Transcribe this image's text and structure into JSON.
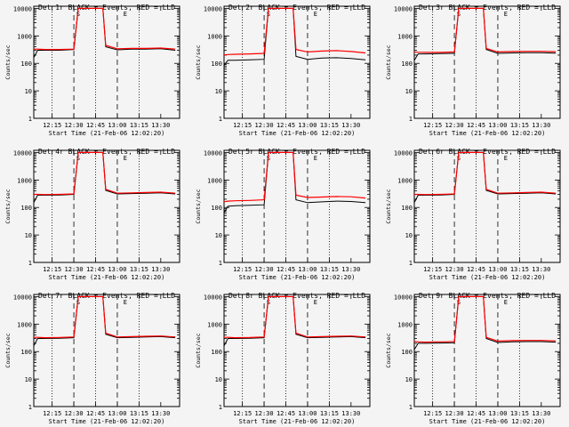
{
  "chart_data": [
    {
      "type": "line",
      "title": "Det 1r BLACK = Events, RED = LLD",
      "xlabel": "Start Time (21-Feb-06 12:02:20)",
      "ylabel": "Counts/sec",
      "xlim": [
        "12:02:20",
        "13:43"
      ],
      "ylim": [
        1,
        12000
      ],
      "yscale": "log",
      "x_ticks": [
        "12:15",
        "12:30",
        "12:45",
        "13:00",
        "13:15",
        "13:30"
      ],
      "y_ticks": [
        "1",
        "10",
        "100",
        "1000",
        "10000"
      ],
      "annotations": [
        "S",
        "E"
      ],
      "grid": false,
      "series": [
        {
          "name": "BLACK",
          "x": [
            "12:02",
            "12:05",
            "12:10",
            "12:20",
            "12:30",
            "12:33",
            "12:35",
            "12:50",
            "12:52",
            "13:00",
            "13:10",
            "13:20",
            "13:30",
            "13:40"
          ],
          "y": [
            150,
            300,
            300,
            300,
            320,
            10000,
            10000,
            10000,
            400,
            310,
            330,
            330,
            340,
            300
          ],
          "color": "#000000"
        },
        {
          "name": "RED",
          "x": [
            "12:02",
            "12:05",
            "12:10",
            "12:20",
            "12:30",
            "12:33",
            "12:35",
            "12:50",
            "12:52",
            "13:00",
            "13:10",
            "13:20",
            "13:30",
            "13:40"
          ],
          "y": [
            330,
            330,
            320,
            320,
            330,
            10000,
            10000,
            10000,
            450,
            340,
            350,
            350,
            360,
            330
          ],
          "color": "#ff0000"
        }
      ]
    },
    {
      "type": "line",
      "title": "Det 2r BLACK = Events, RED = LLD",
      "xlabel": "Start Time (21-Feb-06 12:02:20)",
      "ylabel": "Counts/sec",
      "xlim": [
        "12:02:20",
        "13:43"
      ],
      "ylim": [
        1,
        12000
      ],
      "yscale": "log",
      "x_ticks": [
        "12:15",
        "12:30",
        "12:45",
        "13:00",
        "13:15",
        "13:30"
      ],
      "y_ticks": [
        "1",
        "10",
        "100",
        "1000",
        "10000"
      ],
      "annotations": [
        "S",
        "E"
      ],
      "grid": false,
      "series": [
        {
          "name": "BLACK",
          "x": [
            "12:02",
            "12:05",
            "12:10",
            "12:20",
            "12:30",
            "12:33",
            "12:35",
            "12:50",
            "12:52",
            "13:00",
            "13:10",
            "13:20",
            "13:30",
            "13:40"
          ],
          "y": [
            80,
            130,
            130,
            135,
            140,
            10000,
            10000,
            10000,
            180,
            140,
            155,
            160,
            150,
            135
          ],
          "color": "#000000"
        },
        {
          "name": "RED",
          "x": [
            "12:02",
            "12:05",
            "12:10",
            "12:20",
            "12:30",
            "12:33",
            "12:35",
            "12:50",
            "12:52",
            "13:00",
            "13:10",
            "13:20",
            "13:30",
            "13:40"
          ],
          "y": [
            200,
            210,
            215,
            220,
            230,
            10000,
            10000,
            10000,
            320,
            260,
            280,
            290,
            270,
            240
          ],
          "color": "#ff0000"
        }
      ]
    },
    {
      "type": "line",
      "title": "Det 3r BLACK = Events, RED = LLD",
      "xlabel": "Start Time (21-Feb-06 12:02:20)",
      "ylabel": "Counts/sec",
      "xlim": [
        "12:02:20",
        "13:43"
      ],
      "ylim": [
        1,
        12000
      ],
      "yscale": "log",
      "x_ticks": [
        "12:15",
        "12:30",
        "12:45",
        "13:00",
        "13:15",
        "13:30"
      ],
      "y_ticks": [
        "1",
        "10",
        "100",
        "1000",
        "10000"
      ],
      "annotations": [
        "S",
        "E"
      ],
      "grid": false,
      "series": [
        {
          "name": "BLACK",
          "x": [
            "12:02",
            "12:05",
            "12:10",
            "12:20",
            "12:30",
            "12:33",
            "12:35",
            "12:50",
            "12:52",
            "13:00",
            "13:10",
            "13:20",
            "13:30",
            "13:40"
          ],
          "y": [
            120,
            220,
            220,
            225,
            230,
            10000,
            10000,
            10000,
            320,
            230,
            240,
            245,
            245,
            235
          ],
          "color": "#000000"
        },
        {
          "name": "RED",
          "x": [
            "12:02",
            "12:05",
            "12:10",
            "12:20",
            "12:30",
            "12:33",
            "12:35",
            "12:50",
            "12:52",
            "13:00",
            "13:10",
            "13:20",
            "13:30",
            "13:40"
          ],
          "y": [
            260,
            255,
            250,
            250,
            260,
            10000,
            10000,
            10000,
            350,
            260,
            270,
            275,
            275,
            265
          ],
          "color": "#ff0000"
        }
      ]
    },
    {
      "type": "line",
      "title": "Det 4r BLACK = Events, RED = LLD",
      "xlabel": "Start Time (21-Feb-06 12:02:20)",
      "ylabel": "Counts/sec",
      "xlim": [
        "12:02:20",
        "13:43"
      ],
      "ylim": [
        1,
        12000
      ],
      "yscale": "log",
      "x_ticks": [
        "12:15",
        "12:30",
        "12:45",
        "13:00",
        "13:15",
        "13:30"
      ],
      "y_ticks": [
        "1",
        "10",
        "100",
        "1000",
        "10000"
      ],
      "annotations": [
        "S",
        "E"
      ],
      "grid": false,
      "series": [
        {
          "name": "BLACK",
          "x": [
            "12:02",
            "12:05",
            "12:10",
            "12:20",
            "12:30",
            "12:33",
            "12:35",
            "12:50",
            "12:52",
            "13:00",
            "13:10",
            "13:20",
            "13:30",
            "13:40"
          ],
          "y": [
            140,
            280,
            280,
            285,
            300,
            10000,
            10000,
            10000,
            420,
            310,
            320,
            330,
            340,
            310
          ],
          "color": "#000000"
        },
        {
          "name": "RED",
          "x": [
            "12:02",
            "12:05",
            "12:10",
            "12:20",
            "12:30",
            "12:33",
            "12:35",
            "12:50",
            "12:52",
            "13:00",
            "13:10",
            "13:20",
            "13:30",
            "13:40"
          ],
          "y": [
            300,
            300,
            295,
            300,
            310,
            10000,
            10000,
            10000,
            460,
            330,
            340,
            350,
            360,
            330
          ],
          "color": "#ff0000"
        }
      ]
    },
    {
      "type": "line",
      "title": "Det 5r BLACK = Events, RED = LLD",
      "xlabel": "Start Time (21-Feb-06 12:02:20)",
      "ylabel": "Counts/sec",
      "xlim": [
        "12:02:20",
        "13:43"
      ],
      "ylim": [
        1,
        12000
      ],
      "yscale": "log",
      "x_ticks": [
        "12:15",
        "12:30",
        "12:45",
        "13:00",
        "13:15",
        "13:30"
      ],
      "y_ticks": [
        "1",
        "10",
        "100",
        "1000",
        "10000"
      ],
      "annotations": [
        "S",
        "E"
      ],
      "grid": false,
      "series": [
        {
          "name": "BLACK",
          "x": [
            "12:02",
            "12:05",
            "12:10",
            "12:20",
            "12:30",
            "12:33",
            "12:35",
            "12:50",
            "12:52",
            "13:00",
            "13:10",
            "13:20",
            "13:30",
            "13:40"
          ],
          "y": [
            60,
            110,
            115,
            120,
            125,
            10000,
            10000,
            10000,
            190,
            150,
            160,
            170,
            165,
            150
          ],
          "color": "#000000"
        },
        {
          "name": "RED",
          "x": [
            "12:02",
            "12:05",
            "12:10",
            "12:20",
            "12:30",
            "12:33",
            "12:35",
            "12:50",
            "12:52",
            "13:00",
            "13:10",
            "13:20",
            "13:30",
            "13:40"
          ],
          "y": [
            160,
            170,
            175,
            180,
            190,
            10000,
            10000,
            10000,
            280,
            230,
            240,
            250,
            245,
            220
          ],
          "color": "#ff0000"
        }
      ]
    },
    {
      "type": "line",
      "title": "Det 6r BLACK = Events, RED = LLD",
      "xlabel": "Start Time (21-Feb-06 12:02:20)",
      "ylabel": "Counts/sec",
      "xlim": [
        "12:02:20",
        "13:43"
      ],
      "ylim": [
        1,
        12000
      ],
      "yscale": "log",
      "x_ticks": [
        "12:15",
        "12:30",
        "12:45",
        "13:00",
        "13:15",
        "13:30"
      ],
      "y_ticks": [
        "1",
        "10",
        "100",
        "1000",
        "10000"
      ],
      "annotations": [
        "S",
        "E"
      ],
      "grid": false,
      "series": [
        {
          "name": "BLACK",
          "x": [
            "12:02",
            "12:05",
            "12:10",
            "12:20",
            "12:30",
            "12:33",
            "12:35",
            "12:50",
            "12:52",
            "13:00",
            "13:10",
            "13:20",
            "13:30",
            "13:40"
          ],
          "y": [
            140,
            280,
            280,
            285,
            300,
            10000,
            10000,
            10000,
            420,
            310,
            320,
            330,
            340,
            310
          ],
          "color": "#000000"
        },
        {
          "name": "RED",
          "x": [
            "12:02",
            "12:05",
            "12:10",
            "12:20",
            "12:30",
            "12:33",
            "12:35",
            "12:50",
            "12:52",
            "13:00",
            "13:10",
            "13:20",
            "13:30",
            "13:40"
          ],
          "y": [
            300,
            300,
            295,
            300,
            310,
            10000,
            10000,
            10000,
            460,
            330,
            340,
            350,
            360,
            330
          ],
          "color": "#ff0000"
        }
      ]
    },
    {
      "type": "line",
      "title": "Det 7r BLACK = Events, RED = LLD",
      "xlabel": "Start Time (21-Feb-06 12:02:20)",
      "ylabel": "Counts/sec",
      "xlim": [
        "12:02:20",
        "13:43"
      ],
      "ylim": [
        1,
        12000
      ],
      "yscale": "log",
      "x_ticks": [
        "12:15",
        "12:30",
        "12:45",
        "13:00",
        "13:15",
        "13:30"
      ],
      "y_ticks": [
        "1",
        "10",
        "100",
        "1000",
        "10000"
      ],
      "annotations": [
        "S",
        "E"
      ],
      "grid": false,
      "series": [
        {
          "name": "BLACK",
          "x": [
            "12:02",
            "12:05",
            "12:10",
            "12:20",
            "12:30",
            "12:33",
            "12:35",
            "12:50",
            "12:52",
            "13:00",
            "13:10",
            "13:20",
            "13:30",
            "13:40"
          ],
          "y": [
            150,
            300,
            300,
            305,
            320,
            10000,
            10000,
            10000,
            430,
            320,
            330,
            340,
            350,
            320
          ],
          "color": "#000000"
        },
        {
          "name": "RED",
          "x": [
            "12:02",
            "12:05",
            "12:10",
            "12:20",
            "12:30",
            "12:33",
            "12:35",
            "12:50",
            "12:52",
            "13:00",
            "13:10",
            "13:20",
            "13:30",
            "13:40"
          ],
          "y": [
            330,
            330,
            320,
            325,
            340,
            10000,
            10000,
            10000,
            470,
            340,
            350,
            360,
            370,
            340
          ],
          "color": "#ff0000"
        }
      ]
    },
    {
      "type": "line",
      "title": "Det 8r BLACK = Events, RED = LLD",
      "xlabel": "Start Time (21-Feb-06 12:02:20)",
      "ylabel": "Counts/sec",
      "xlim": [
        "12:02:20",
        "13:43"
      ],
      "ylim": [
        1,
        12000
      ],
      "yscale": "log",
      "x_ticks": [
        "12:15",
        "12:30",
        "12:45",
        "13:00",
        "13:15",
        "13:30"
      ],
      "y_ticks": [
        "1",
        "10",
        "100",
        "1000",
        "10000"
      ],
      "annotations": [
        "S",
        "E"
      ],
      "grid": false,
      "series": [
        {
          "name": "BLACK",
          "x": [
            "12:02",
            "12:05",
            "12:10",
            "12:20",
            "12:30",
            "12:33",
            "12:35",
            "12:50",
            "12:52",
            "13:00",
            "13:10",
            "13:20",
            "13:30",
            "13:40"
          ],
          "y": [
            150,
            300,
            300,
            305,
            320,
            10000,
            10000,
            10000,
            430,
            320,
            330,
            340,
            350,
            320
          ],
          "color": "#000000"
        },
        {
          "name": "RED",
          "x": [
            "12:02",
            "12:05",
            "12:10",
            "12:20",
            "12:30",
            "12:33",
            "12:35",
            "12:50",
            "12:52",
            "13:00",
            "13:10",
            "13:20",
            "13:30",
            "13:40"
          ],
          "y": [
            330,
            330,
            320,
            325,
            340,
            10000,
            10000,
            10000,
            470,
            340,
            350,
            360,
            370,
            340
          ],
          "color": "#ff0000"
        }
      ]
    },
    {
      "type": "line",
      "title": "Det 9r BLACK = Events, RED = LLD",
      "xlabel": "Start Time (21-Feb-06 12:02:20)",
      "ylabel": "Counts/sec",
      "xlim": [
        "12:02:20",
        "13:43"
      ],
      "ylim": [
        1,
        12000
      ],
      "yscale": "log",
      "x_ticks": [
        "12:15",
        "12:30",
        "12:45",
        "13:00",
        "13:15",
        "13:30"
      ],
      "y_ticks": [
        "1",
        "10",
        "100",
        "1000",
        "10000"
      ],
      "annotations": [
        "S",
        "E"
      ],
      "grid": false,
      "series": [
        {
          "name": "BLACK",
          "x": [
            "12:02",
            "12:05",
            "12:10",
            "12:20",
            "12:30",
            "12:33",
            "12:35",
            "12:50",
            "12:52",
            "13:00",
            "13:10",
            "13:20",
            "13:30",
            "13:40"
          ],
          "y": [
            110,
            200,
            200,
            205,
            210,
            10000,
            10000,
            10000,
            300,
            215,
            225,
            230,
            230,
            220
          ],
          "color": "#000000"
        },
        {
          "name": "RED",
          "x": [
            "12:02",
            "12:05",
            "12:10",
            "12:20",
            "12:30",
            "12:33",
            "12:35",
            "12:50",
            "12:52",
            "13:00",
            "13:10",
            "13:20",
            "13:30",
            "13:40"
          ],
          "y": [
            230,
            225,
            220,
            225,
            230,
            10000,
            10000,
            10000,
            330,
            240,
            250,
            255,
            255,
            245
          ],
          "color": "#ff0000"
        }
      ]
    }
  ]
}
